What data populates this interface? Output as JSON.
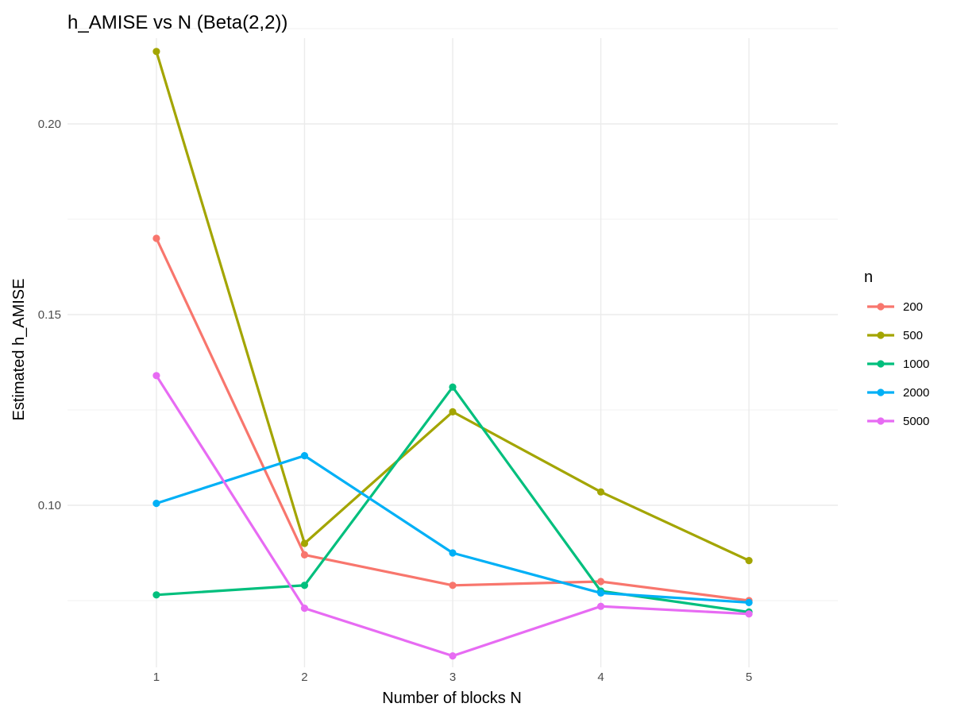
{
  "chart_data": {
    "type": "line",
    "title": "h_AMISE vs N (Beta(2,2))",
    "xlabel": "Number of blocks N",
    "ylabel": "Estimated h_AMISE",
    "x": [
      1,
      2,
      3,
      4,
      5
    ],
    "x_tick_labels": [
      "1",
      "2",
      "3",
      "4",
      "5"
    ],
    "y_ticks": [
      0.1,
      0.15,
      0.2
    ],
    "y_tick_labels": [
      "0.10",
      "0.15",
      "0.20"
    ],
    "xlim": [
      0.4,
      5.6
    ],
    "ylim": [
      0.0575,
      0.2225
    ],
    "grid": true,
    "legend": {
      "title": "n",
      "position": "right"
    },
    "series": [
      {
        "name": "200",
        "color": "#F8766D",
        "values": [
          0.17,
          0.087,
          0.079,
          0.08,
          0.075
        ]
      },
      {
        "name": "500",
        "color": "#A3A500",
        "values": [
          0.219,
          0.09,
          0.1245,
          0.1035,
          0.0855
        ]
      },
      {
        "name": "1000",
        "color": "#00BF7D",
        "values": [
          0.0765,
          0.079,
          0.131,
          0.0775,
          0.072
        ]
      },
      {
        "name": "2000",
        "color": "#00B0F6",
        "values": [
          0.1005,
          0.113,
          0.0875,
          0.077,
          0.0745
        ]
      },
      {
        "name": "5000",
        "color": "#E76BF3",
        "values": [
          0.134,
          0.073,
          0.0605,
          0.0735,
          0.0715
        ]
      }
    ]
  }
}
